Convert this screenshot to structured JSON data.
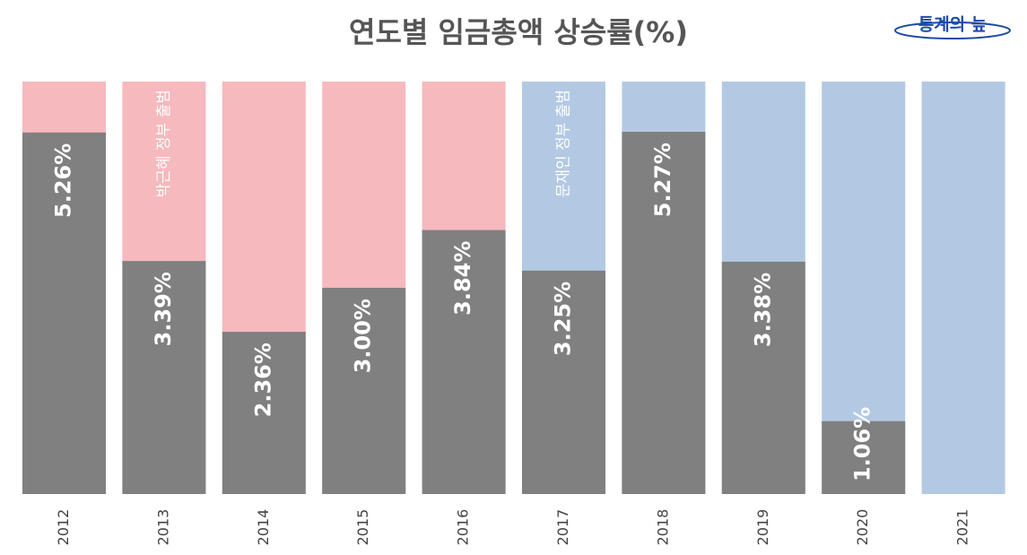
{
  "chart_data": {
    "type": "bar",
    "title": "연도별 임금총액 상승률(%)",
    "logo": "통계의 늪",
    "categories": [
      "2012",
      "2013",
      "2014",
      "2015",
      "2016",
      "2017",
      "2018",
      "2019",
      "2020",
      "2021"
    ],
    "values": [
      5.26,
      3.39,
      2.36,
      3.0,
      3.84,
      3.25,
      5.27,
      3.38,
      1.06,
      null
    ],
    "value_labels": [
      "5.26%",
      "3.39%",
      "2.36%",
      "3.00%",
      "3.84%",
      "3.25%",
      "5.27%",
      "3.38%",
      "1.06%",
      null
    ],
    "color": "#808080",
    "background_colors": [
      "#f5b9be",
      "#f5b9be",
      "#f5b9be",
      "#f5b9be",
      "#f5b9be",
      "#b3c9e3",
      "#b3c9e3",
      "#b3c9e3",
      "#b3c9e3",
      "#b3c9e3"
    ],
    "annotations": [
      {
        "text": "박근혜 정부 출범",
        "category": "2013"
      },
      {
        "text": "문재인 정부 출범",
        "category": "2017"
      }
    ],
    "ylim": [
      0,
      6
    ],
    "grid": false
  }
}
